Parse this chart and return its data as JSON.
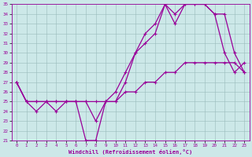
{
  "xlabel": "Windchill (Refroidissement éolien,°C)",
  "bg_color": "#cce8e8",
  "line_color": "#990099",
  "grid_color": "#99bbbb",
  "xlim": [
    -0.5,
    23.5
  ],
  "ylim": [
    21,
    35
  ],
  "xticks": [
    0,
    1,
    2,
    3,
    4,
    5,
    6,
    7,
    8,
    9,
    10,
    11,
    12,
    13,
    14,
    15,
    16,
    17,
    18,
    19,
    20,
    21,
    22,
    23
  ],
  "yticks": [
    21,
    22,
    23,
    24,
    25,
    26,
    27,
    28,
    29,
    30,
    31,
    32,
    33,
    34,
    35
  ],
  "series": [
    {
      "x": [
        0,
        1,
        2,
        3,
        4,
        5,
        6,
        7,
        8,
        9,
        10,
        11,
        12,
        13,
        14,
        15,
        16,
        17,
        18,
        19,
        20,
        21,
        22,
        23
      ],
      "y": [
        27,
        25,
        25,
        25,
        25,
        25,
        25,
        25,
        25,
        25,
        25,
        26,
        26,
        27,
        27,
        28,
        28,
        29,
        29,
        29,
        29,
        29,
        29,
        28
      ]
    },
    {
      "x": [
        0,
        1,
        2,
        3,
        4,
        5,
        6,
        7,
        8,
        9,
        10,
        11,
        12,
        13,
        14,
        15,
        16,
        17,
        18,
        19,
        20,
        21,
        22,
        23
      ],
      "y": [
        27,
        25,
        24,
        25,
        24,
        25,
        25,
        21,
        21,
        25,
        25,
        27,
        30,
        31,
        32,
        35,
        34,
        35,
        35,
        35,
        34,
        30,
        28,
        29
      ]
    },
    {
      "x": [
        0,
        1,
        2,
        3,
        4,
        5,
        6,
        7,
        8,
        9,
        10,
        11,
        12,
        13,
        14,
        15,
        16,
        17,
        18,
        19,
        20,
        21,
        22,
        23
      ],
      "y": [
        27,
        25,
        25,
        25,
        25,
        25,
        25,
        25,
        23,
        25,
        26,
        28,
        30,
        32,
        33,
        35,
        33,
        35,
        35,
        35,
        34,
        34,
        30,
        28
      ]
    }
  ]
}
